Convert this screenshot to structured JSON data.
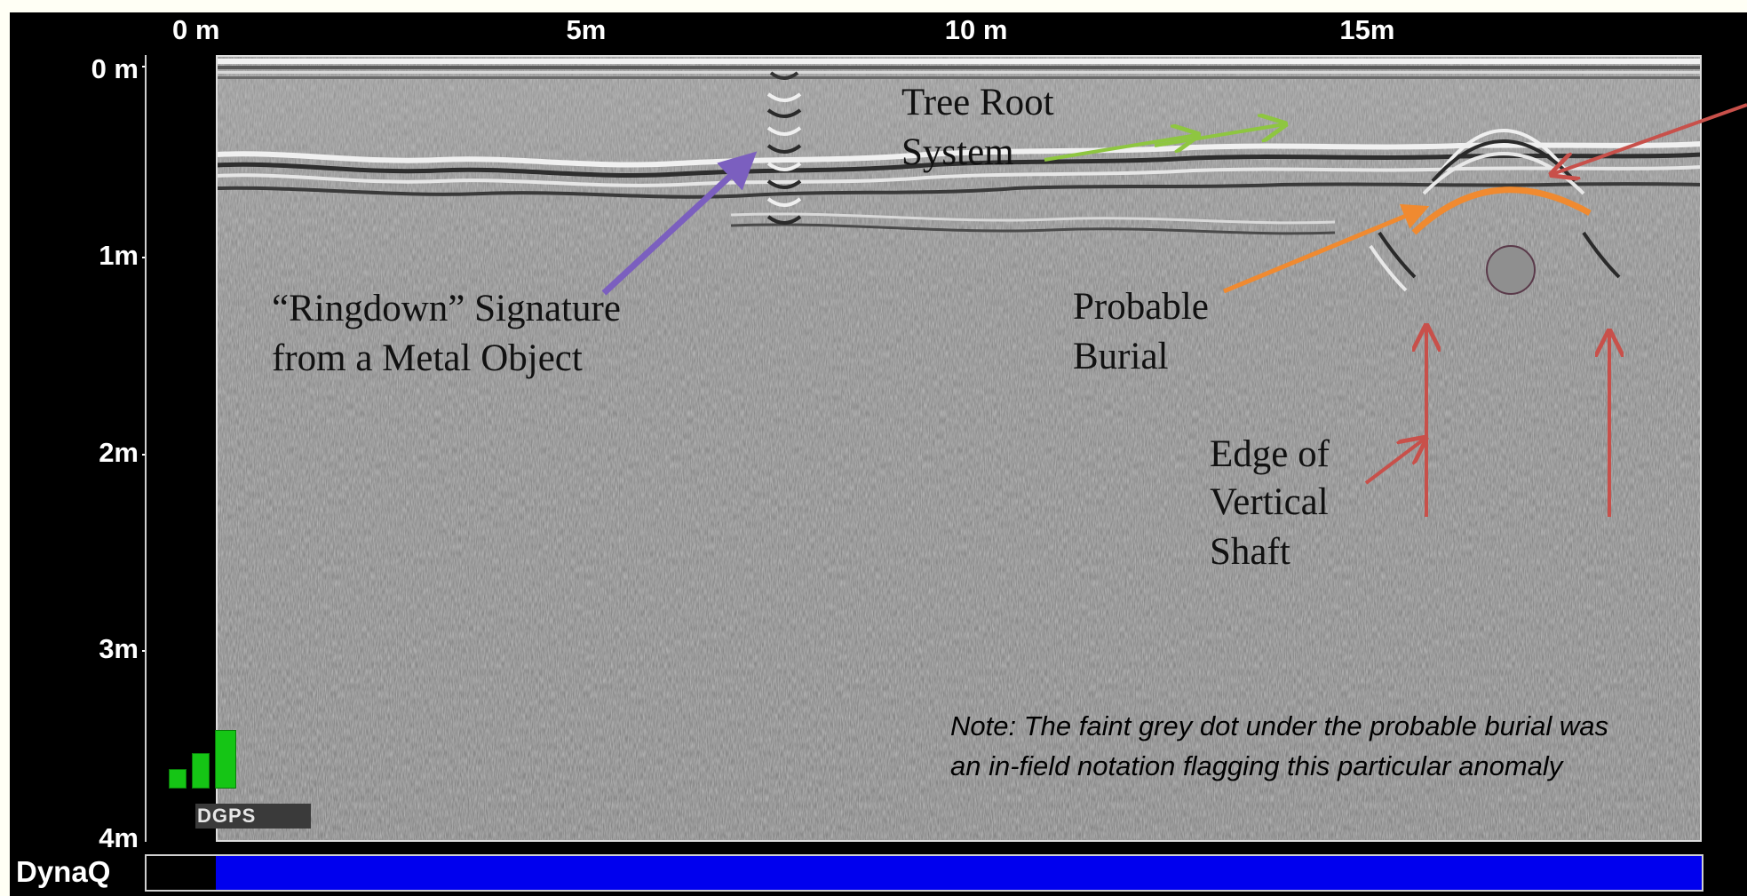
{
  "x_axis": {
    "ticks": [
      "0 m",
      "5m",
      "10 m",
      "15m"
    ]
  },
  "y_axis": {
    "ticks": [
      "0 m",
      "1m",
      "2m",
      "3m",
      "4m"
    ]
  },
  "annotations": {
    "ringdown_line1": "“Ringdown” Signature",
    "ringdown_line2": "from a Metal Object",
    "tree_line1": "Tree Root",
    "tree_line2": "System",
    "burial_line1": "Probable",
    "burial_line2": "Burial",
    "shaft_line1": "Edge of",
    "shaft_line2": "Vertical",
    "shaft_line3": "Shaft"
  },
  "note": "Note: The faint grey dot under the probable burial was an in-field notation flagging this particular anomaly",
  "dgps": {
    "label": "DGPS",
    "signal_bars": 3
  },
  "dynaq": {
    "label": "DynaQ"
  },
  "colors": {
    "ringdown_arrow": "#7b5fbf",
    "tree_arrow": "#8ec640",
    "burial_arc": "#f08a30",
    "shaft_arrow": "#c8504a",
    "dynaq_fill": "#0000ee"
  }
}
